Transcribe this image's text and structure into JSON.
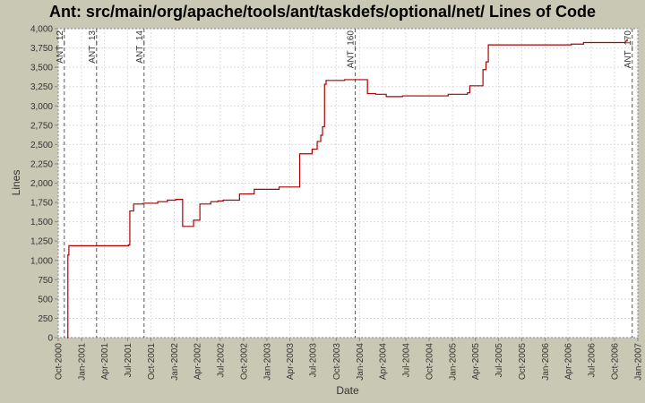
{
  "chart_data": {
    "type": "line",
    "title": "Ant: src/main/org/apache/tools/ant/taskdefs/optional/net/ Lines of Code",
    "x_label": "Date",
    "y_label": "Lines",
    "x": [
      "2000-11-05",
      "2000-11-08",
      "2000-11-12",
      "2001-07-05",
      "2001-07-10",
      "2001-07-25",
      "2001-09-01",
      "2001-10-28",
      "2001-12-05",
      "2002-01-07",
      "2002-02-03",
      "2002-03-18",
      "2002-04-12",
      "2002-05-25",
      "2002-06-22",
      "2002-07-13",
      "2002-09-15",
      "2002-11-12",
      "2003-02-18",
      "2003-05-10",
      "2003-06-28",
      "2003-07-18",
      "2003-08-01",
      "2003-08-08",
      "2003-08-16",
      "2003-08-22",
      "2003-11-03",
      "2004-02-01",
      "2004-03-04",
      "2004-04-15",
      "2004-06-18",
      "2004-12-15",
      "2005-03-01",
      "2005-03-10",
      "2005-05-01",
      "2005-05-13",
      "2005-05-22",
      "2006-04-13",
      "2006-06-01",
      "2006-11-13",
      "2006-11-20"
    ],
    "values": [
      0,
      1070,
      1190,
      1200,
      1640,
      1730,
      1740,
      1760,
      1780,
      1790,
      1440,
      1520,
      1730,
      1760,
      1770,
      1780,
      1860,
      1920,
      1950,
      2380,
      2440,
      2540,
      2620,
      2730,
      3280,
      3330,
      3340,
      3160,
      3150,
      3120,
      3130,
      3150,
      3170,
      3260,
      3470,
      3570,
      3790,
      3800,
      3820,
      3840,
      3870
    ],
    "color": "#b00000",
    "xlim": [
      "2000-10-01",
      "2007-01-01"
    ],
    "xticks": [
      {
        "value": "2000-10-01",
        "label": "Oct-2000"
      },
      {
        "value": "2001-01-01",
        "label": "Jan-2001"
      },
      {
        "value": "2001-04-01",
        "label": "Apr-2001"
      },
      {
        "value": "2001-07-01",
        "label": "Jul-2001"
      },
      {
        "value": "2001-10-01",
        "label": "Oct-2001"
      },
      {
        "value": "2002-01-01",
        "label": "Jan-2002"
      },
      {
        "value": "2002-04-01",
        "label": "Apr-2002"
      },
      {
        "value": "2002-07-01",
        "label": "Jul-2002"
      },
      {
        "value": "2002-10-01",
        "label": "Oct-2002"
      },
      {
        "value": "2003-01-01",
        "label": "Jan-2003"
      },
      {
        "value": "2003-04-01",
        "label": "Apr-2003"
      },
      {
        "value": "2003-07-01",
        "label": "Jul-2003"
      },
      {
        "value": "2003-10-01",
        "label": "Oct-2003"
      },
      {
        "value": "2004-01-01",
        "label": "Jan-2004"
      },
      {
        "value": "2004-04-01",
        "label": "Apr-2004"
      },
      {
        "value": "2004-07-01",
        "label": "Jul-2004"
      },
      {
        "value": "2004-10-01",
        "label": "Oct-2004"
      },
      {
        "value": "2005-01-01",
        "label": "Jan-2005"
      },
      {
        "value": "2005-04-01",
        "label": "Apr-2005"
      },
      {
        "value": "2005-07-01",
        "label": "Jul-2005"
      },
      {
        "value": "2005-10-01",
        "label": "Oct-2005"
      },
      {
        "value": "2006-01-01",
        "label": "Jan-2006"
      },
      {
        "value": "2006-04-01",
        "label": "Apr-2006"
      },
      {
        "value": "2006-07-01",
        "label": "Jul-2006"
      },
      {
        "value": "2006-10-01",
        "label": "Oct-2006"
      },
      {
        "value": "2007-01-01",
        "label": "Jan-2007"
      }
    ],
    "ylim": [
      0,
      4000
    ],
    "yticks": [
      0,
      250,
      500,
      750,
      {
        "value": 1000,
        "label": "1,000"
      },
      {
        "value": 1250,
        "label": "1,250"
      },
      {
        "value": 1500,
        "label": "1,500"
      },
      {
        "value": 1750,
        "label": "1,750"
      },
      {
        "value": 2000,
        "label": "2,000"
      },
      {
        "value": 2250,
        "label": "2,250"
      },
      {
        "value": 2500,
        "label": "2,500"
      },
      {
        "value": 2750,
        "label": "2,750"
      },
      {
        "value": 3000,
        "label": "3,000"
      },
      {
        "value": 3250,
        "label": "3,250"
      },
      {
        "value": 3500,
        "label": "3,500"
      },
      {
        "value": 3750,
        "label": "3,750"
      },
      {
        "value": 4000,
        "label": "4,000"
      }
    ],
    "grid": true,
    "markers": [
      {
        "x": "2000-10-25",
        "label": "ANT_12"
      },
      {
        "x": "2001-03-01",
        "label": "ANT_13"
      },
      {
        "x": "2001-09-04",
        "label": "ANT_14"
      },
      {
        "x": "2003-12-15",
        "label": "ANT_160"
      },
      {
        "x": "2006-12-10",
        "label": "ANT_170"
      }
    ]
  }
}
